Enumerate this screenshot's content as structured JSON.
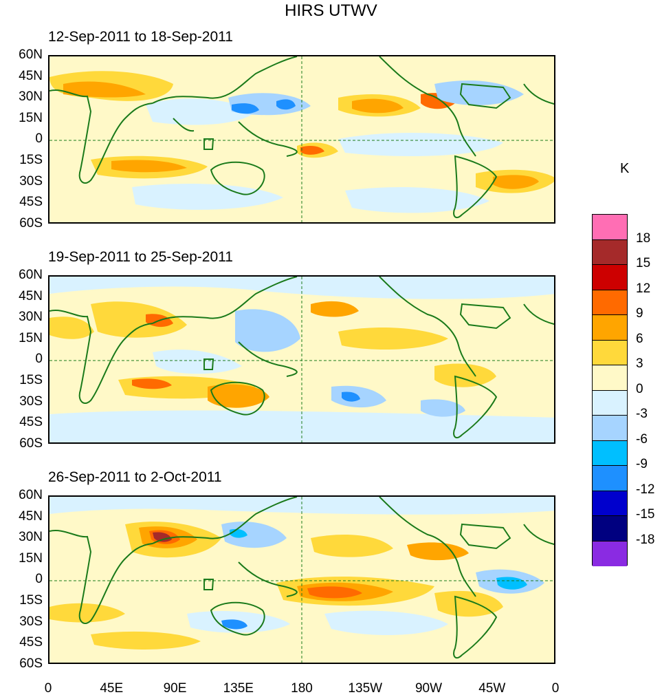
{
  "title": "HIRS UTWV",
  "units": "K",
  "panels": [
    {
      "date_range": "12-Sep-2011 to 18-Sep-2011"
    },
    {
      "date_range": "19-Sep-2011 to 25-Sep-2011"
    },
    {
      "date_range": "26-Sep-2011 to 2-Oct-2011"
    }
  ],
  "lat_labels": [
    "60N",
    "45N",
    "30N",
    "15N",
    "0",
    "15S",
    "30S",
    "45S",
    "60S"
  ],
  "lon_labels": [
    "0",
    "45E",
    "90E",
    "135E",
    "180",
    "135W",
    "90W",
    "45W",
    "0"
  ],
  "legend": {
    "labels": [
      "18",
      "15",
      "12",
      "9",
      "6",
      "3",
      "0",
      "-3",
      "-6",
      "-9",
      "-12",
      "-15",
      "-18"
    ],
    "colors": [
      "#ff6eb4",
      "#a52a2a",
      "#cd0000",
      "#ff6a00",
      "#ffa500",
      "#ffd93b",
      "#fff9c8",
      "#d9f2ff",
      "#a6d4ff",
      "#00bfff",
      "#1e90ff",
      "#0000cd",
      "#000080",
      "#8a2be2"
    ]
  },
  "colors": {
    "coastline": "#1a7a1a",
    "grid": "#1a7a1a"
  }
}
